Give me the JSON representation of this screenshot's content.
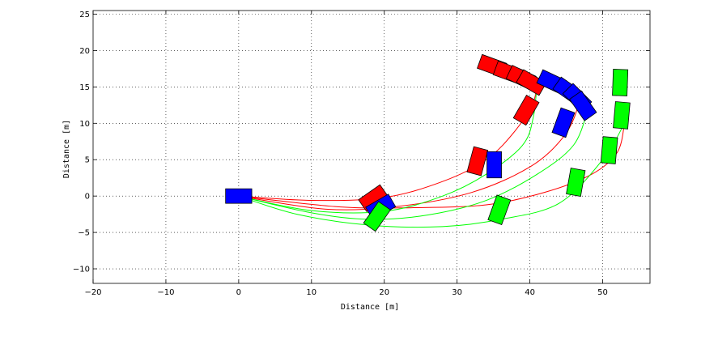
{
  "chart_data": {
    "type": "line",
    "title": "",
    "xlabel": "Distance [m]",
    "ylabel": "Distance [m]",
    "xlim": [
      -20,
      56.5
    ],
    "ylim": [
      -12,
      25.5
    ],
    "xticks": [
      -20,
      -10,
      0,
      10,
      20,
      30,
      40,
      50
    ],
    "yticks": [
      -10,
      -5,
      0,
      5,
      10,
      15,
      20,
      25
    ],
    "xtick_labels": [
      "−20",
      "−10",
      "0",
      "10",
      "20",
      "30",
      "40",
      "50"
    ],
    "ytick_labels": [
      "−10",
      "−5",
      "0",
      "5",
      "10",
      "15",
      "20",
      "25"
    ],
    "grid": true,
    "legend": "none",
    "colors": {
      "red": "#ff0000",
      "blue": "#0000ff",
      "green": "#00ff00"
    },
    "series": [
      {
        "color": "red",
        "x": [
          0,
          10,
          20,
          28,
          34,
          38,
          40.5,
          41
        ],
        "y": [
          0,
          -0.6,
          -0.2,
          2,
          5,
          9,
          13,
          16
        ]
      },
      {
        "color": "red",
        "x": [
          0,
          12,
          22,
          32,
          40,
          44.5,
          46.5,
          46.5
        ],
        "y": [
          0,
          -1.8,
          -1.4,
          0.5,
          4,
          8,
          12,
          15
        ]
      },
      {
        "color": "red",
        "x": [
          0,
          14,
          24,
          34,
          42,
          48.5,
          52,
          53
        ],
        "y": [
          0,
          -1.5,
          -1.6,
          -1.2,
          0.5,
          3,
          6,
          10
        ]
      },
      {
        "color": "green",
        "x": [
          0,
          10,
          20,
          28,
          34,
          39,
          40.5,
          41
        ],
        "y": [
          0,
          -2,
          -2.1,
          0,
          3,
          7,
          11,
          16
        ]
      },
      {
        "color": "green",
        "x": [
          0,
          10,
          18,
          26,
          34,
          41,
          46,
          48
        ],
        "y": [
          0,
          -2.3,
          -3.2,
          -2.6,
          -0.6,
          3,
          7,
          12
        ]
      },
      {
        "color": "green",
        "x": [
          0,
          8,
          18,
          28,
          36,
          44,
          50,
          53
        ],
        "y": [
          0,
          -2.5,
          -4,
          -4.2,
          -3.2,
          -1,
          5,
          10
        ]
      }
    ],
    "vehicles": [
      {
        "color": "blue",
        "x": 0,
        "y": 0,
        "heading": 0
      },
      {
        "color": "red",
        "x": 18.5,
        "y": -0.3,
        "heading": 35
      },
      {
        "color": "blue",
        "x": 19.5,
        "y": -1.5,
        "heading": 30
      },
      {
        "color": "green",
        "x": 19,
        "y": -2.8,
        "heading": 55
      },
      {
        "color": "red",
        "x": 32.8,
        "y": 4.8,
        "heading": 75
      },
      {
        "color": "blue",
        "x": 35.1,
        "y": 4.3,
        "heading": 90
      },
      {
        "color": "green",
        "x": 35.8,
        "y": -1.9,
        "heading": 70
      },
      {
        "color": "red",
        "x": 39.5,
        "y": 11.8,
        "heading": 60
      },
      {
        "color": "blue",
        "x": 44.6,
        "y": 10.1,
        "heading": 70
      },
      {
        "color": "green",
        "x": 46.3,
        "y": 1.9,
        "heading": 80
      },
      {
        "color": "red",
        "x": 34.8,
        "y": 17.9,
        "heading": -20
      },
      {
        "color": "red",
        "x": 37,
        "y": 17,
        "heading": -20
      },
      {
        "color": "red",
        "x": 38.8,
        "y": 16.3,
        "heading": -25
      },
      {
        "color": "red",
        "x": 40.2,
        "y": 15.6,
        "heading": -30
      },
      {
        "color": "blue",
        "x": 43,
        "y": 15.7,
        "heading": -25
      },
      {
        "color": "blue",
        "x": 45.2,
        "y": 14.5,
        "heading": -35
      },
      {
        "color": "blue",
        "x": 46.5,
        "y": 13.5,
        "heading": -45
      },
      {
        "color": "blue",
        "x": 47.3,
        "y": 12.4,
        "heading": -55
      },
      {
        "color": "green",
        "x": 50.9,
        "y": 6.3,
        "heading": 85
      },
      {
        "color": "green",
        "x": 52.6,
        "y": 11.1,
        "heading": 85
      },
      {
        "color": "green",
        "x": 52.4,
        "y": 15.6,
        "heading": 88
      }
    ]
  }
}
